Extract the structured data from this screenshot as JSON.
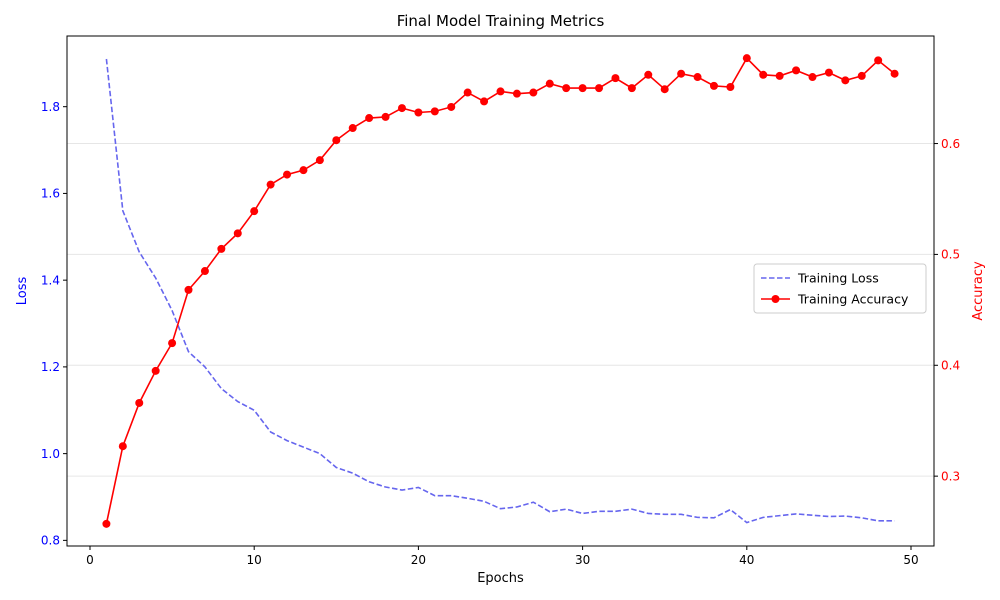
{
  "chart_data": {
    "type": "line",
    "title": "Final Model Training Metrics",
    "xlabel": "Epochs",
    "ylabel_left": "Loss",
    "ylabel_right": "Accuracy",
    "xlim": [
      -1.4,
      51.4
    ],
    "ylim_left": [
      0.787,
      1.963
    ],
    "ylim_right": [
      0.237,
      0.697
    ],
    "x_ticks": [
      0,
      10,
      20,
      30,
      40,
      50
    ],
    "y_ticks_left": [
      0.8,
      1.0,
      1.2,
      1.4,
      1.6,
      1.8
    ],
    "y_ticks_left_labels": [
      "0.8",
      "1.0",
      "1.2",
      "1.4",
      "1.6",
      "1.8"
    ],
    "y_ticks_right": [
      0.3,
      0.4,
      0.5,
      0.6
    ],
    "y_ticks_right_labels": [
      "0.3",
      "0.4",
      "0.5",
      "0.6"
    ],
    "grid": "horizontal, right axis",
    "legend_position": "center-right",
    "colors": {
      "left_axis": "#0000ff",
      "right_axis": "#ff0000",
      "loss_line": "#6666ee",
      "accuracy_line": "#ff0000"
    },
    "series": [
      {
        "name": "Training Loss",
        "axis": "left",
        "style": "dashed",
        "x": [
          1,
          2,
          3,
          4,
          5,
          6,
          7,
          8,
          9,
          10,
          11,
          12,
          13,
          14,
          15,
          16,
          17,
          18,
          19,
          20,
          21,
          22,
          23,
          24,
          25,
          26,
          27,
          28,
          29,
          30,
          31,
          32,
          33,
          34,
          35,
          36,
          37,
          38,
          39,
          40,
          41,
          42,
          43,
          44,
          45,
          46,
          47,
          48,
          49
        ],
        "values": [
          1.91,
          1.56,
          1.465,
          1.405,
          1.33,
          1.235,
          1.2,
          1.15,
          1.12,
          1.1,
          1.05,
          1.03,
          1.015,
          1.0,
          0.968,
          0.955,
          0.935,
          0.923,
          0.916,
          0.922,
          0.903,
          0.903,
          0.897,
          0.89,
          0.873,
          0.877,
          0.888,
          0.866,
          0.872,
          0.862,
          0.867,
          0.867,
          0.872,
          0.862,
          0.86,
          0.86,
          0.853,
          0.852,
          0.871,
          0.841,
          0.853,
          0.857,
          0.861,
          0.858,
          0.855,
          0.856,
          0.852,
          0.845,
          0.845
        ]
      },
      {
        "name": "Training Accuracy",
        "axis": "right",
        "style": "solid-marker",
        "x": [
          1,
          2,
          3,
          4,
          5,
          6,
          7,
          8,
          9,
          10,
          11,
          12,
          13,
          14,
          15,
          16,
          17,
          18,
          19,
          20,
          21,
          22,
          23,
          24,
          25,
          26,
          27,
          28,
          29,
          30,
          31,
          32,
          33,
          34,
          35,
          36,
          37,
          38,
          39,
          40,
          41,
          42,
          43,
          44,
          45,
          46,
          47,
          48,
          49
        ],
        "values": [
          0.257,
          0.327,
          0.366,
          0.395,
          0.42,
          0.468,
          0.485,
          0.505,
          0.519,
          0.539,
          0.563,
          0.572,
          0.576,
          0.585,
          0.603,
          0.614,
          0.623,
          0.624,
          0.632,
          0.628,
          0.629,
          0.633,
          0.646,
          0.638,
          0.647,
          0.645,
          0.646,
          0.654,
          0.65,
          0.65,
          0.65,
          0.659,
          0.65,
          0.662,
          0.649,
          0.663,
          0.66,
          0.652,
          0.651,
          0.677,
          0.662,
          0.661,
          0.666,
          0.66,
          0.664,
          0.657,
          0.661,
          0.675,
          0.663
        ]
      }
    ]
  }
}
